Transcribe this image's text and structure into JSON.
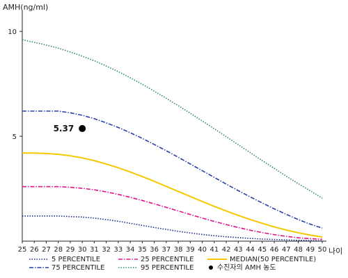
{
  "chart_data": {
    "type": "line",
    "title": "",
    "ylabel": "AMH(ng/ml)",
    "xlabel": "나이",
    "x": [
      25,
      26,
      27,
      28,
      29,
      30,
      31,
      32,
      33,
      34,
      35,
      36,
      37,
      38,
      39,
      40,
      41,
      42,
      43,
      44,
      45,
      46,
      47,
      48,
      49,
      50
    ],
    "x_tick_labels": [
      "25",
      "26",
      "27",
      "28",
      "29",
      "30",
      "31",
      "32",
      "33",
      "34",
      "35",
      "36",
      "37",
      "38",
      "39",
      "40",
      "41",
      "42",
      "43",
      "44",
      "45",
      "46",
      "47",
      "48",
      "49",
      "50"
    ],
    "xlim": [
      25,
      50
    ],
    "ylim": [
      0,
      11
    ],
    "y_ticks": [
      5,
      10
    ],
    "y_tick_labels": [
      "5",
      "10"
    ],
    "grid": false,
    "legend_position": "bottom",
    "series": [
      {
        "name": "5 PERCENTILE",
        "color": "#1a2a8c",
        "dash": "dotted",
        "values": [
          1.2,
          1.2,
          1.2,
          1.2,
          1.17,
          1.15,
          1.1,
          1.03,
          0.95,
          0.85,
          0.75,
          0.65,
          0.56,
          0.47,
          0.39,
          0.32,
          0.26,
          0.21,
          0.17,
          0.13,
          0.1,
          0.08,
          0.06,
          0.04,
          0.03,
          0.02
        ]
      },
      {
        "name": "25 PERCENTILE",
        "color": "#e0138c",
        "dash": "dashdot",
        "values": [
          2.6,
          2.6,
          2.6,
          2.6,
          2.57,
          2.52,
          2.45,
          2.35,
          2.23,
          2.09,
          1.94,
          1.78,
          1.61,
          1.44,
          1.27,
          1.1,
          0.94,
          0.79,
          0.65,
          0.52,
          0.41,
          0.31,
          0.23,
          0.16,
          0.12,
          0.09
        ]
      },
      {
        "name": "MEDIAN(50 PERCENTILE)",
        "color": "#f5c800",
        "dash": "solid",
        "values": [
          4.2,
          4.2,
          4.18,
          4.14,
          4.07,
          3.97,
          3.84,
          3.68,
          3.5,
          3.3,
          3.08,
          2.85,
          2.61,
          2.37,
          2.13,
          1.89,
          1.66,
          1.44,
          1.23,
          1.03,
          0.85,
          0.68,
          0.53,
          0.4,
          0.29,
          0.2
        ]
      },
      {
        "name": "75 PERCENTILE",
        "color": "#2a3fa8",
        "dash": "dashdot",
        "values": [
          6.2,
          6.2,
          6.2,
          6.2,
          6.12,
          6.0,
          5.84,
          5.64,
          5.42,
          5.17,
          4.9,
          4.61,
          4.31,
          4.0,
          3.68,
          3.36,
          3.04,
          2.72,
          2.41,
          2.11,
          1.82,
          1.54,
          1.28,
          1.03,
          0.81,
          0.62
        ]
      },
      {
        "name": "95 PERCENTILE",
        "color": "#2e8b57",
        "dash": "dotted",
        "values": [
          9.6,
          9.48,
          9.35,
          9.2,
          9.02,
          8.82,
          8.6,
          8.35,
          8.08,
          7.79,
          7.48,
          7.15,
          6.81,
          6.46,
          6.1,
          5.73,
          5.36,
          4.98,
          4.6,
          4.22,
          3.84,
          3.47,
          3.1,
          2.74,
          2.4,
          2.05
        ]
      }
    ],
    "points": [
      {
        "name": "수진자의 AMH 농도",
        "x": 30,
        "y": 5.37,
        "label": "5.37",
        "color": "#000000"
      }
    ],
    "legend": [
      {
        "label": "5 PERCENTILE",
        "series": 0
      },
      {
        "label": "25 PERCENTILE",
        "series": 1
      },
      {
        "label": "MEDIAN(50 PERCENTILE)",
        "series": 2
      },
      {
        "label": "75 PERCENTILE",
        "series": 3
      },
      {
        "label": "95 PERCENTILE",
        "series": 4
      },
      {
        "label": "수진자의 AMH 농도",
        "point": 0
      }
    ]
  }
}
